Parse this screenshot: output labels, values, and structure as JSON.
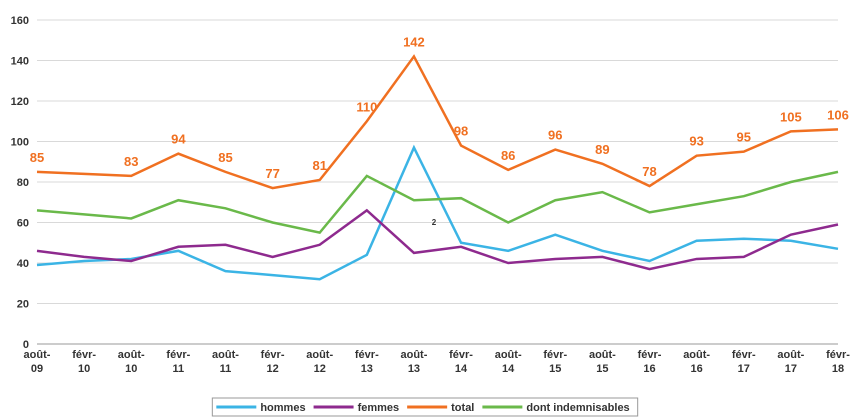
{
  "chart_data": {
    "type": "line",
    "categories": [
      "août-09",
      "févr-10",
      "août-10",
      "févr-11",
      "août-11",
      "févr-12",
      "août-12",
      "févr-13",
      "août-13",
      "févr-14",
      "août-14",
      "févr-15",
      "août-15",
      "févr-16",
      "août-16",
      "févr-17",
      "août-17",
      "févr-18"
    ],
    "series": [
      {
        "name": "hommes",
        "color": "#3bb4e5",
        "values": [
          39,
          41,
          42,
          46,
          36,
          34,
          32,
          44,
          97,
          50,
          46,
          54,
          46,
          41,
          51,
          52,
          51,
          47
        ]
      },
      {
        "name": "femmes",
        "color": "#8e2a8e",
        "values": [
          46,
          43,
          41,
          48,
          49,
          43,
          49,
          66,
          45,
          48,
          40,
          42,
          43,
          37,
          42,
          43,
          54,
          59
        ]
      },
      {
        "name": "total",
        "color": "#f07021",
        "values": [
          85,
          84,
          83,
          94,
          85,
          77,
          81,
          110,
          142,
          98,
          86,
          96,
          89,
          78,
          93,
          95,
          105,
          106
        ],
        "value_labels": [
          "85",
          null,
          "83",
          "94",
          "85",
          "77",
          "81",
          "110",
          "142",
          "98",
          "86",
          "96",
          "89",
          "78",
          "93",
          "95",
          "105",
          "106"
        ]
      },
      {
        "name": "dont indemnisables",
        "color": "#6ab94a",
        "values": [
          66,
          64,
          62,
          71,
          67,
          60,
          55,
          83,
          71,
          72,
          60,
          71,
          75,
          65,
          69,
          73,
          80,
          85
        ]
      }
    ],
    "annotation": "2",
    "ylim": [
      0,
      160
    ],
    "yticks": [
      0,
      20,
      40,
      60,
      80,
      100,
      120,
      140,
      160
    ],
    "grid": true,
    "legend": "bottom"
  }
}
